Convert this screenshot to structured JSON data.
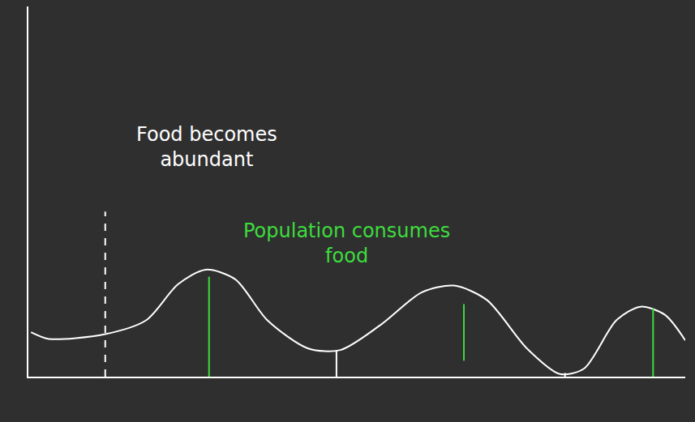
{
  "chart_data": {
    "type": "line",
    "x": [
      0.4,
      3.1,
      11.7,
      17.9,
      22.8,
      27,
      31.5,
      36.4,
      42.6,
      47.5,
      53.7,
      59.9,
      64.8,
      69.8,
      75.9,
      80.9,
      84.6,
      89.5,
      93.2,
      96.9,
      100
    ],
    "values": [
      12,
      10.2,
      11.5,
      15.2,
      25,
      28.9,
      26.3,
      15.2,
      7.6,
      7.2,
      14.1,
      22.8,
      24.6,
      20.7,
      7.6,
      0.7,
      2.2,
      15.2,
      18.9,
      16.7,
      9.8
    ],
    "color": "#ffffff",
    "line_style": "solid",
    "xlim": [
      0,
      100
    ],
    "ylim": [
      0,
      100
    ],
    "tick_labels": false,
    "grid": false,
    "annotations": [
      {
        "text": "Food becomes abundant",
        "x": 27.2,
        "y": 62,
        "color": "#ffffff"
      },
      {
        "text": "Population consumes food",
        "x": 48.5,
        "y": 36,
        "color": "#3ddc3d"
      }
    ],
    "vertical_lines": [
      {
        "x": 11.7,
        "y0": 0,
        "y1": 44.6,
        "color": "#ffffff",
        "line_style": "dashed"
      },
      {
        "x": 27.5,
        "y0": 0,
        "y1": 27,
        "color": "#3ddc3d",
        "line_style": "solid"
      },
      {
        "x": 66.3,
        "y0": 4.3,
        "y1": 19.6,
        "color": "#3ddc3d",
        "line_style": "solid"
      },
      {
        "x": 95.1,
        "y0": 0,
        "y1": 18.5,
        "color": "#3ddc3d",
        "line_style": "solid"
      },
      {
        "x": 46.9,
        "y0": 0,
        "y1": 7.2,
        "color": "#ffffff",
        "line_style": "solid"
      },
      {
        "x": 81.7,
        "y0": 0,
        "y1": 1,
        "color": "#ffffff",
        "line_style": "solid"
      }
    ]
  }
}
